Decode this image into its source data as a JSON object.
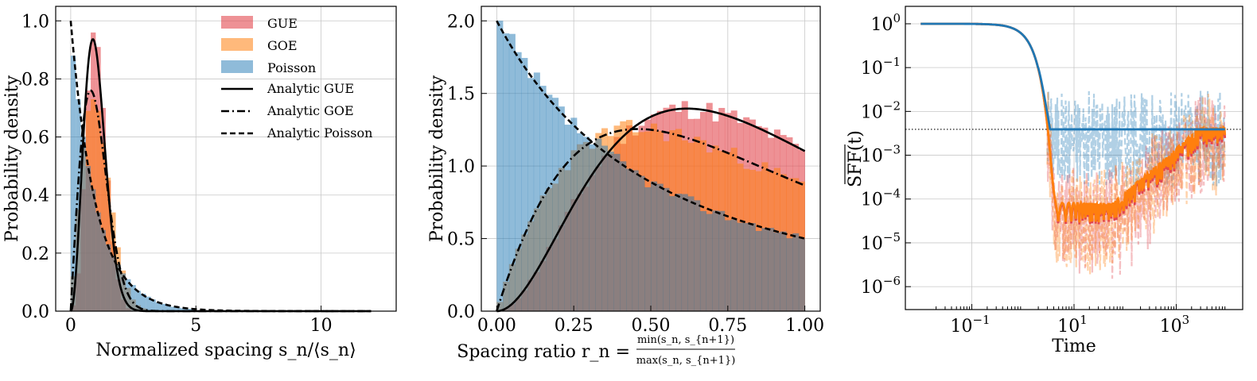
{
  "figure": {
    "panels": 3
  },
  "colors": {
    "gue": "#e2484f",
    "goe": "#ff7f0e",
    "poisson": "#1f77b4",
    "overlap": "#8a7c7b",
    "analytic": "#000000"
  },
  "chart_data": [
    {
      "type": "bar",
      "name": "spacing-distribution",
      "xlabel": "Normalized spacing s_n/⟨s_n⟩",
      "ylabel": "Probability density",
      "xlim": [
        -0.6,
        13.0
      ],
      "ylim": [
        0.0,
        1.05
      ],
      "xticks": [
        0,
        5,
        10
      ],
      "xtick_labels": [
        "0",
        "5",
        "10"
      ],
      "yticks": [
        0.0,
        0.2,
        0.4,
        0.6,
        0.8,
        1.0
      ],
      "ytick_labels": [
        "0.0",
        "0.2",
        "0.4",
        "0.6",
        "0.8",
        "1.0"
      ],
      "grid": true,
      "legend_position": "top-right",
      "legend": {
        "gue": "GUE",
        "goe": "GOE",
        "poisson": "Poisson",
        "analytic_gue": "Analytic GUE",
        "analytic_goe": "Analytic GOE",
        "analytic_poisson": "Analytic Poisson"
      },
      "histograms": {
        "bin_edges": [
          0.0,
          0.2,
          0.4,
          0.6,
          0.8,
          1.0,
          1.2,
          1.4,
          1.6,
          1.8,
          2.0,
          2.2,
          2.4,
          2.6,
          2.8,
          3.0,
          3.2,
          3.4,
          3.6,
          3.8,
          4.0,
          4.2,
          4.4,
          4.6,
          4.8,
          5.0
        ],
        "gue": [
          0.02,
          0.13,
          0.42,
          0.76,
          0.96,
          0.91,
          0.7,
          0.45,
          0.24,
          0.11,
          0.04,
          0.01,
          0.0,
          0.0,
          0.0,
          0.0,
          0.0,
          0.0,
          0.0,
          0.0,
          0.0,
          0.0,
          0.0,
          0.0,
          0.0
        ],
        "goe": [
          0.12,
          0.35,
          0.56,
          0.69,
          0.73,
          0.69,
          0.58,
          0.46,
          0.34,
          0.22,
          0.14,
          0.08,
          0.04,
          0.02,
          0.01,
          0.0,
          0.0,
          0.0,
          0.0,
          0.0,
          0.0,
          0.0,
          0.0,
          0.0,
          0.0
        ],
        "poisson": [
          0.88,
          0.73,
          0.6,
          0.5,
          0.42,
          0.34,
          0.28,
          0.23,
          0.19,
          0.16,
          0.13,
          0.11,
          0.09,
          0.07,
          0.06,
          0.05,
          0.04,
          0.03,
          0.025,
          0.02,
          0.015,
          0.012,
          0.01,
          0.008,
          0.006
        ]
      },
      "curves": {
        "analytic_gue": "(32/pi^2) s^2 exp(-4 s^2/pi)",
        "analytic_goe": "(pi/2) s exp(-pi s^2/4)",
        "analytic_poisson": "exp(-s)",
        "x_range": [
          0,
          12
        ]
      }
    },
    {
      "type": "bar",
      "name": "spacing-ratio-distribution",
      "xlabel_prefix": "Spacing ratio r_n =",
      "xlabel_num": "min(s_n, s_{n+1})",
      "xlabel_den": "max(s_n, s_{n+1})",
      "ylabel": "Probability density",
      "xlim": [
        -0.05,
        1.05
      ],
      "ylim": [
        0.0,
        2.1
      ],
      "xticks": [
        0.0,
        0.25,
        0.5,
        0.75,
        1.0
      ],
      "xtick_labels": [
        "0.00",
        "0.25",
        "0.50",
        "0.75",
        "1.00"
      ],
      "yticks": [
        0.0,
        0.5,
        1.0,
        1.5,
        2.0
      ],
      "ytick_labels": [
        "0.0",
        "0.5",
        "1.0",
        "1.5",
        "2.0"
      ],
      "grid": true,
      "histograms": {
        "bins": 50,
        "range": [
          0,
          1
        ],
        "gue": "follows analytic GUE with noise",
        "goe": "follows analytic GOE with noise",
        "poisson": "follows analytic Poisson with noise"
      },
      "curves": {
        "analytic_gue": "(81 sqrt(3)/(4 pi)) (r+r^2)^2/(1+r+r^2)^4 * 2",
        "analytic_goe": "(27/8) (r+r^2)/(1+r+r^2)^2.5 * 2",
        "analytic_poisson": "2/(1+r)^2",
        "x_range": [
          0,
          1
        ]
      }
    },
    {
      "type": "line",
      "name": "spectral-form-factor",
      "xlabel": "Time",
      "ylabel": "SFF(t)",
      "xscale": "log",
      "yscale": "log",
      "xlim": [
        0.005,
        20000
      ],
      "ylim": [
        3e-07,
        2.5
      ],
      "xtick_exponents": [
        -1,
        1,
        3
      ],
      "ytick_exponents": [
        0,
        -1,
        -2,
        -3,
        -4,
        -5,
        -6
      ],
      "tick_base": "10",
      "grid": true,
      "plateau_level": 0.0039,
      "series": [
        {
          "name": "Poisson",
          "color_key": "poisson",
          "style": "solid, thick"
        },
        {
          "name": "GUE",
          "color_key": "gue",
          "style": "solid, thick"
        },
        {
          "name": "GOE",
          "color_key": "goe",
          "style": "solid, thick"
        },
        {
          "name": "Poisson (raw)",
          "color_key": "poisson",
          "style": "dashed, faded"
        },
        {
          "name": "GUE (raw)",
          "color_key": "gue",
          "style": "dashed, faded"
        },
        {
          "name": "GOE (raw)",
          "color_key": "goe",
          "style": "dashed, faded"
        }
      ]
    }
  ]
}
